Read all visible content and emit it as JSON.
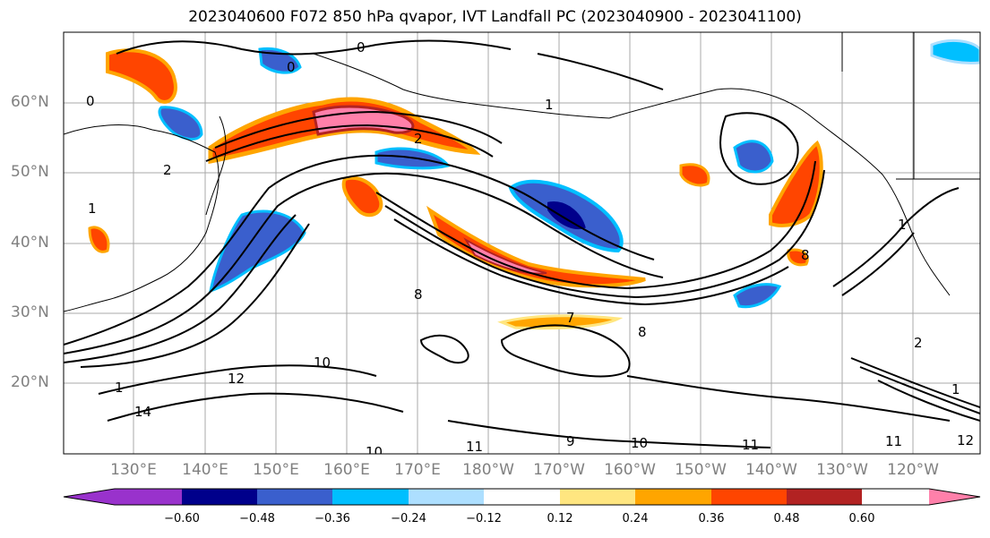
{
  "title": "2023040600 F072 850 hPa qvapor, IVT Landfall PC (2023040900 - 2023041100)",
  "map": {
    "lat_labels": [
      "60°N",
      "50°N",
      "40°N",
      "30°N",
      "20°N"
    ],
    "lon_labels": [
      "130°E",
      "140°E",
      "150°E",
      "160°E",
      "170°E",
      "180°W",
      "170°W",
      "160°W",
      "150°W",
      "140°W",
      "130°W",
      "120°W"
    ],
    "contour_labels": [
      "0",
      "0",
      "0",
      "1",
      "1",
      "2",
      "2",
      "1",
      "12",
      "14",
      "10",
      "10",
      "11",
      "11",
      "11",
      "12",
      "10",
      "1",
      "2",
      "1",
      "9",
      "8",
      "8",
      "8",
      "7"
    ]
  },
  "colorbar": {
    "ticks": [
      "−0.60",
      "−0.48",
      "−0.36",
      "−0.24",
      "−0.12",
      "0.12",
      "0.24",
      "0.36",
      "0.48",
      "0.60"
    ],
    "colors": [
      "#9932CC",
      "#00008B",
      "#3A5FCD",
      "#00BFFF",
      "#ADDFFF",
      "#FFFFFF",
      "#FFE680",
      "#FFA500",
      "#FF4500",
      "#B22222",
      "#FF80AA"
    ]
  }
}
